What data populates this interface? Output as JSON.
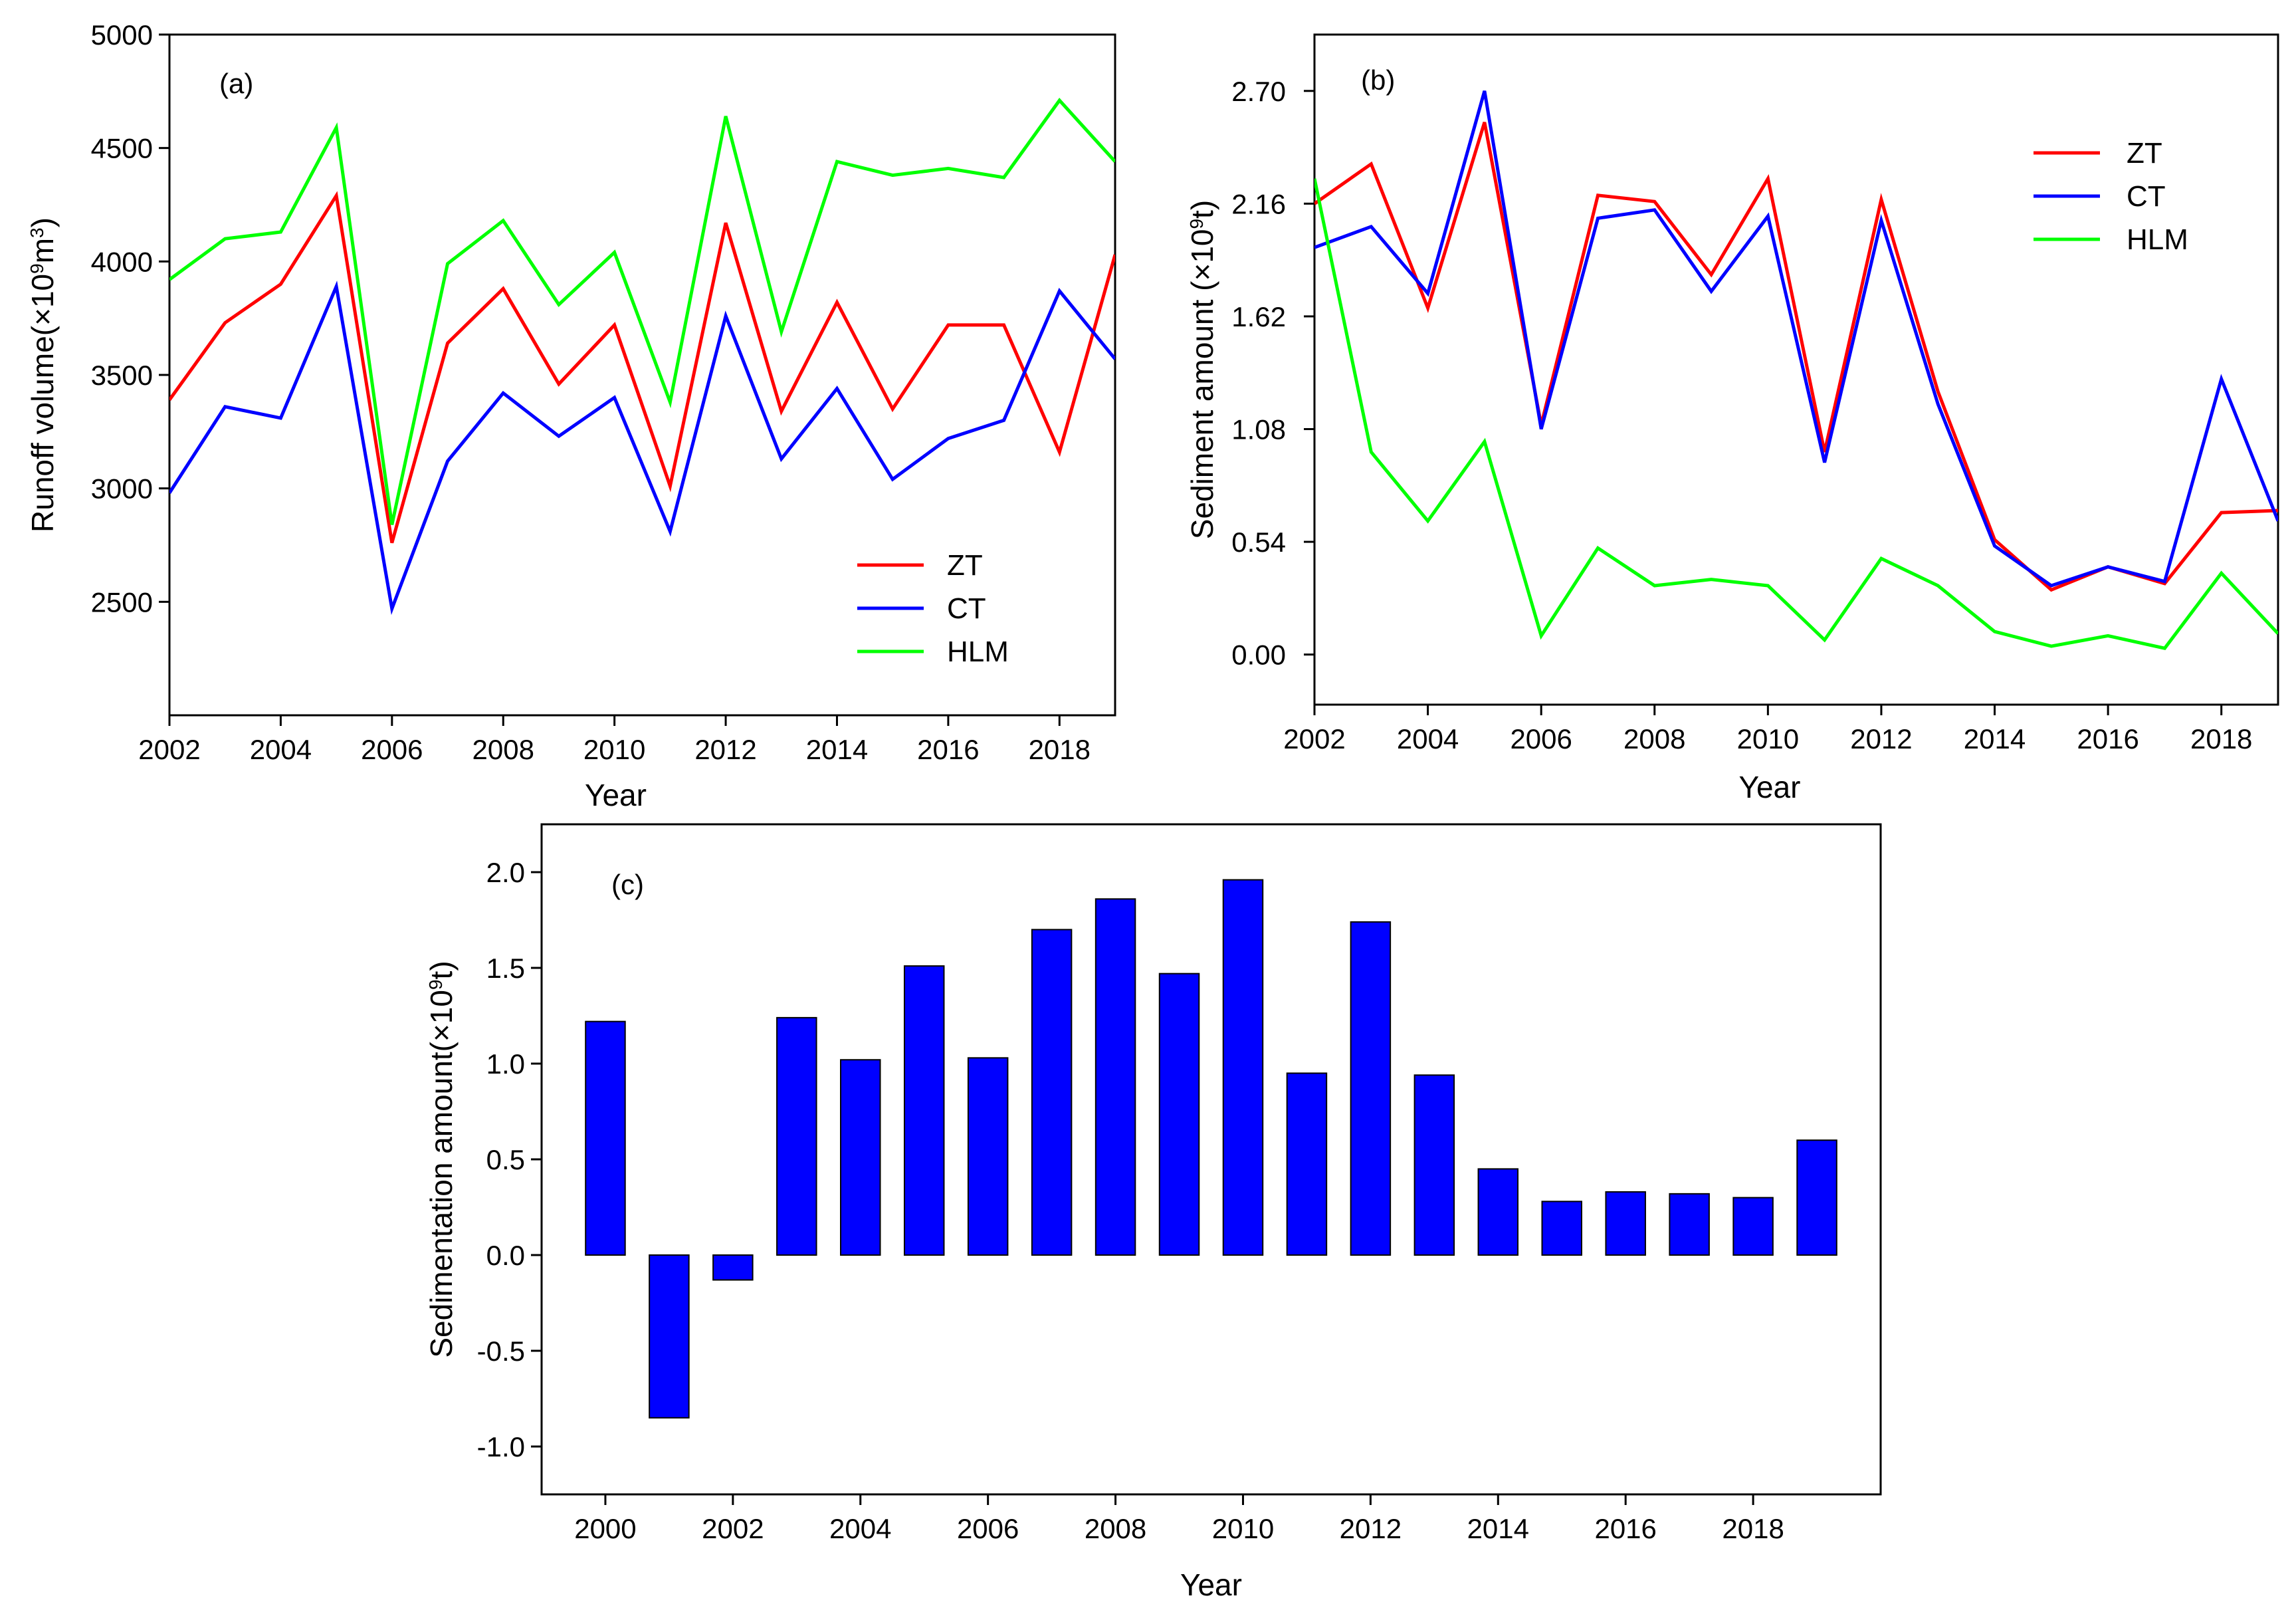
{
  "chart_data": [
    {
      "id": "a",
      "type": "line",
      "panel_label": "(a)",
      "xlabel": "Year",
      "ylabel_main": "Runoff volume(×10",
      "ylabel_sup": "9",
      "ylabel_mid": "m",
      "ylabel_sup2": "3",
      "ylabel_end": ")",
      "xlim": [
        2002,
        2019
      ],
      "ylim": [
        2000,
        5000
      ],
      "x_ticks": [
        2002,
        2004,
        2006,
        2008,
        2010,
        2012,
        2014,
        2016,
        2018
      ],
      "y_ticks": [
        2500,
        3000,
        3500,
        4000,
        4500,
        5000
      ],
      "legend_position": "lower-right",
      "x": [
        2002,
        2003,
        2004,
        2005,
        2006,
        2007,
        2008,
        2009,
        2010,
        2011,
        2012,
        2013,
        2014,
        2015,
        2016,
        2017,
        2018,
        2019
      ],
      "series": [
        {
          "name": "ZT",
          "color": "#ff0000",
          "values": [
            3390,
            3730,
            3900,
            4290,
            2760,
            3640,
            3880,
            3460,
            3720,
            3010,
            4170,
            3340,
            3820,
            3350,
            3720,
            3720,
            3160,
            4030
          ]
        },
        {
          "name": "CT",
          "color": "#0000ff",
          "values": [
            2980,
            3360,
            3310,
            3890,
            2470,
            3120,
            3420,
            3230,
            3400,
            2810,
            3760,
            3130,
            3440,
            3040,
            3220,
            3300,
            3870,
            3570
          ]
        },
        {
          "name": "HLM",
          "color": "#00ff00",
          "values": [
            3920,
            4100,
            4130,
            4590,
            2840,
            3990,
            4180,
            3810,
            4040,
            3380,
            4640,
            3690,
            4440,
            4380,
            4410,
            4370,
            4710,
            4440
          ]
        }
      ]
    },
    {
      "id": "b",
      "type": "line",
      "panel_label": "(b)",
      "xlabel": "Year",
      "ylabel_main": "Sediment amount (×10",
      "ylabel_sup": "9",
      "ylabel_end": "t)",
      "xlim": [
        2002,
        2019
      ],
      "ylim": [
        -0.24,
        2.97
      ],
      "x_ticks": [
        2002,
        2004,
        2006,
        2008,
        2010,
        2012,
        2014,
        2016,
        2018
      ],
      "y_ticks": [
        "0.00",
        "0.54",
        "1.08",
        "1.62",
        "2.16",
        "2.70"
      ],
      "legend_position": "top-right",
      "x": [
        2002,
        2003,
        2004,
        2005,
        2006,
        2007,
        2008,
        2009,
        2010,
        2011,
        2012,
        2013,
        2014,
        2015,
        2016,
        2017,
        2018,
        2019
      ],
      "series": [
        {
          "name": "ZT",
          "color": "#ff0000",
          "values": [
            2.16,
            2.35,
            1.66,
            2.55,
            1.1,
            2.2,
            2.17,
            1.82,
            2.28,
            0.97,
            2.18,
            1.26,
            0.55,
            0.31,
            0.42,
            0.34,
            0.68,
            0.69
          ]
        },
        {
          "name": "CT",
          "color": "#0000ff",
          "values": [
            1.95,
            2.05,
            1.73,
            2.7,
            1.08,
            2.09,
            2.13,
            1.74,
            2.1,
            0.92,
            2.08,
            1.2,
            0.52,
            0.33,
            0.42,
            0.35,
            1.32,
            0.64
          ]
        },
        {
          "name": "HLM",
          "color": "#00ff00",
          "values": [
            2.28,
            0.97,
            0.64,
            1.02,
            0.09,
            0.51,
            0.33,
            0.36,
            0.33,
            0.07,
            0.46,
            0.33,
            0.11,
            0.04,
            0.09,
            0.03,
            0.39,
            0.1
          ]
        }
      ]
    },
    {
      "id": "c",
      "type": "bar",
      "panel_label": "(c)",
      "xlabel": "Year",
      "ylabel_main": "Sedimentation amount(×10",
      "ylabel_sup": "9",
      "ylabel_end": "t)",
      "xlim": [
        1999,
        2020
      ],
      "ylim": [
        -1.25,
        2.25
      ],
      "x_ticks": [
        2000,
        2002,
        2004,
        2006,
        2008,
        2010,
        2012,
        2014,
        2016,
        2018
      ],
      "y_ticks": [
        "-1.0",
        "-0.5",
        "0.0",
        "0.5",
        "1.0",
        "1.5",
        "2.0"
      ],
      "bar_color": "#0000ff",
      "categories": [
        2000,
        2001,
        2002,
        2003,
        2004,
        2005,
        2006,
        2007,
        2008,
        2009,
        2010,
        2011,
        2012,
        2013,
        2014,
        2015,
        2016,
        2017,
        2018,
        2019
      ],
      "values": [
        1.22,
        -0.85,
        -0.13,
        1.24,
        1.02,
        1.51,
        1.03,
        1.7,
        1.86,
        1.47,
        1.96,
        0.95,
        1.74,
        0.94,
        0.45,
        0.28,
        0.33,
        0.32,
        0.3,
        0.6
      ]
    }
  ]
}
